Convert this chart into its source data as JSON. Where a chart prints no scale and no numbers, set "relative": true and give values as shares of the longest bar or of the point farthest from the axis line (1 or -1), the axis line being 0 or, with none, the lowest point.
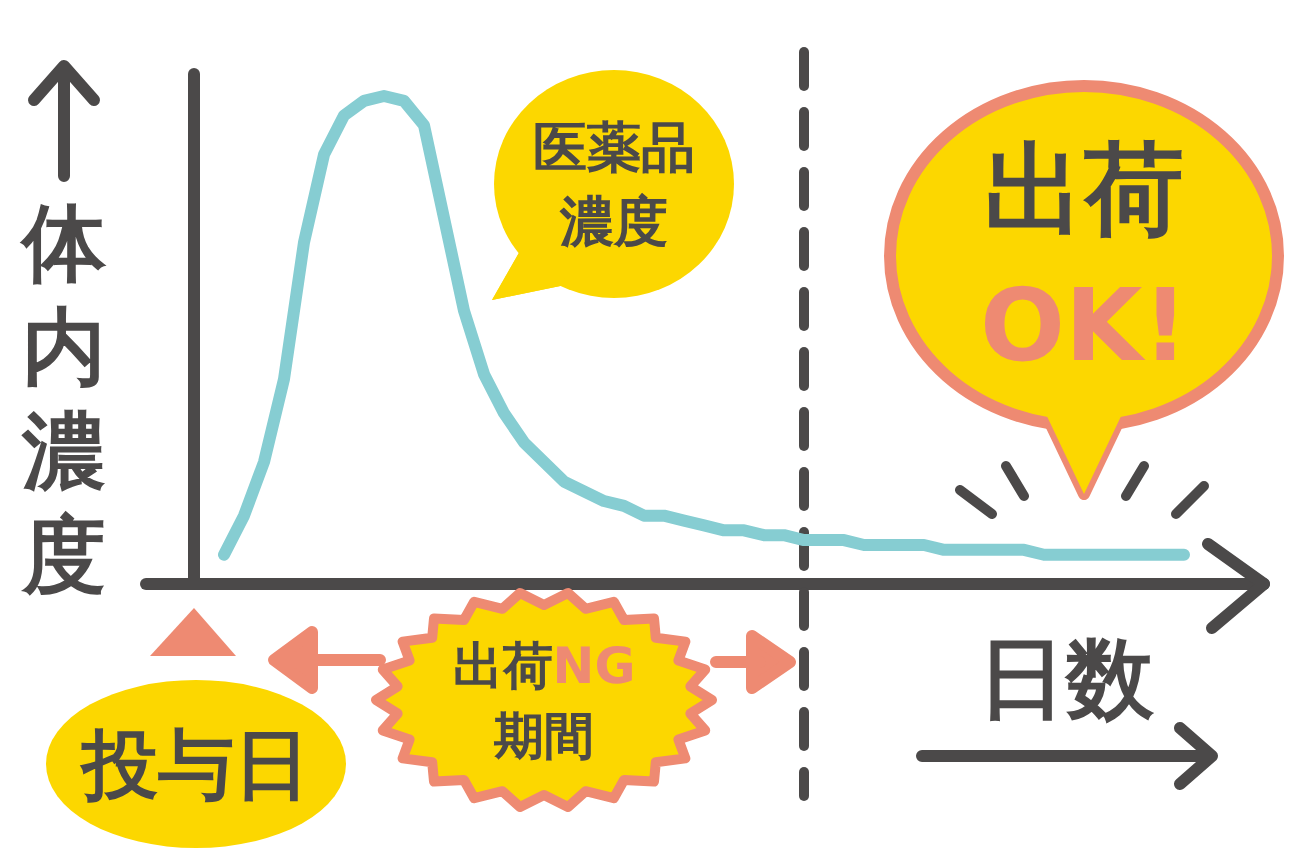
{
  "chart_data": {
    "type": "line",
    "relative": true,
    "categories": [
      null,
      null,
      null,
      null,
      null,
      null,
      null,
      null,
      null,
      null,
      null,
      null,
      null,
      null,
      null,
      null,
      null,
      null,
      null,
      null,
      null,
      null,
      null,
      null,
      null,
      null,
      null,
      null,
      null,
      null,
      null,
      null,
      null,
      null,
      null,
      null,
      null,
      null,
      null,
      null,
      null,
      null,
      null,
      null,
      null,
      null,
      null,
      null,
      null
    ],
    "series": [
      {
        "color": "#86cdd2",
        "values": [
          0.06,
          0.14,
          0.25,
          0.42,
          0.7,
          0.88,
          0.96,
          0.99,
          1.0,
          0.99,
          0.94,
          0.75,
          0.56,
          0.43,
          0.35,
          0.29,
          0.25,
          0.21,
          0.19,
          0.17,
          0.16,
          0.14,
          0.14,
          0.13,
          0.12,
          0.11,
          0.11,
          0.1,
          0.1,
          0.09,
          0.09,
          0.09,
          0.08,
          0.08,
          0.08,
          0.08,
          0.07,
          0.07,
          0.07,
          0.07,
          0.07,
          0.06,
          0.06,
          0.06,
          0.06,
          0.06,
          0.06,
          0.06,
          0.06
        ]
      }
    ],
    "xlabel": "日数",
    "ylabel": "体内濃度",
    "annotations": [
      "医薬品濃度",
      "出荷OK!",
      "投与日",
      "出荷NG期間"
    ]
  }
}
